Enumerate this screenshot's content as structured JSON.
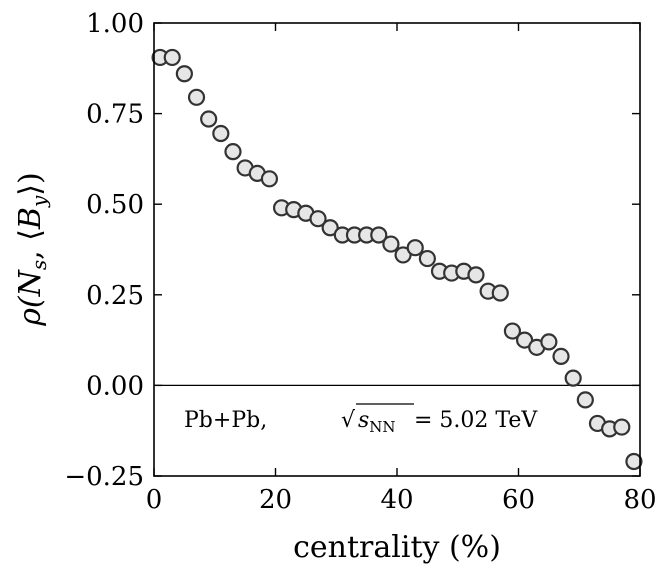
{
  "chart_data": {
    "type": "scatter",
    "title": "",
    "xlabel": "centrality (%)",
    "ylabel": "ρ(N_s, ⟨B_y⟩)",
    "ylabel_parts": {
      "rho": "ρ(",
      "n": "N",
      "s": "s",
      "comma": ", ⟨",
      "b": "B",
      "y": "y",
      "close": "⟩)"
    },
    "xlim": [
      0,
      80
    ],
    "ylim": [
      -0.25,
      1.0
    ],
    "x_ticks": [
      0,
      20,
      40,
      60,
      80
    ],
    "x_tick_labels": [
      "0",
      "20",
      "40",
      "60",
      "80"
    ],
    "y_ticks": [
      -0.25,
      0.0,
      0.25,
      0.5,
      0.75,
      1.0
    ],
    "y_tick_labels": [
      "−0.25",
      "0.00",
      "0.25",
      "0.50",
      "0.75",
      "1.00"
    ],
    "reference_line_y": 0.0,
    "grid": false,
    "annotation": {
      "system": "Pb+Pb,",
      "s": "s",
      "nn": "NN",
      "energy": " = 5.02 TeV"
    },
    "series": [
      {
        "name": "Pb+Pb",
        "marker": "open-circle",
        "x": [
          1,
          3,
          5,
          7,
          9,
          11,
          13,
          15,
          17,
          19,
          21,
          23,
          25,
          27,
          29,
          31,
          33,
          35,
          37,
          39,
          41,
          43,
          45,
          47,
          49,
          51,
          53,
          55,
          57,
          59,
          61,
          63,
          65,
          67,
          69,
          71,
          73,
          75,
          77,
          79
        ],
        "y": [
          0.905,
          0.905,
          0.86,
          0.795,
          0.735,
          0.695,
          0.645,
          0.6,
          0.585,
          0.57,
          0.49,
          0.485,
          0.475,
          0.46,
          0.435,
          0.415,
          0.415,
          0.415,
          0.415,
          0.39,
          0.36,
          0.38,
          0.35,
          0.315,
          0.31,
          0.315,
          0.305,
          0.26,
          0.255,
          0.15,
          0.125,
          0.105,
          0.12,
          0.08,
          0.02,
          -0.04,
          -0.105,
          -0.12,
          -0.115,
          -0.21
        ]
      }
    ]
  }
}
